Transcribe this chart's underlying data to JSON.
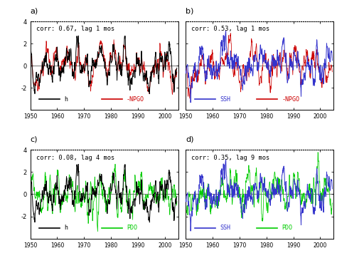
{
  "title_a": "corr: 0.67, lag 1 mos",
  "title_b": "corr: 0.53, lag 1 mos",
  "title_c": "corr: 0.08, lag 4 mos",
  "title_d": "corr: 0.35, lag 9 mos",
  "label_a": "a)",
  "label_b": "b)",
  "label_c": "c)",
  "label_d": "d)",
  "xmin": 1950,
  "xmax": 2005,
  "ymin": -4,
  "ymax": 4,
  "yticks": [
    -4,
    -2,
    0,
    2,
    4
  ],
  "xticks": [
    1950,
    1960,
    1970,
    1980,
    1990,
    2000
  ],
  "color_black": "#000000",
  "color_red": "#cc0000",
  "color_blue": "#3333cc",
  "color_green": "#00cc00",
  "bg_color": "#ffffff",
  "legend_a": [
    "h",
    "-NPGO"
  ],
  "legend_b": [
    "SSH",
    "-NPGO"
  ],
  "legend_c": [
    "h",
    "PDO"
  ],
  "legend_d": [
    "SSH",
    "PDO"
  ],
  "seed": 42
}
